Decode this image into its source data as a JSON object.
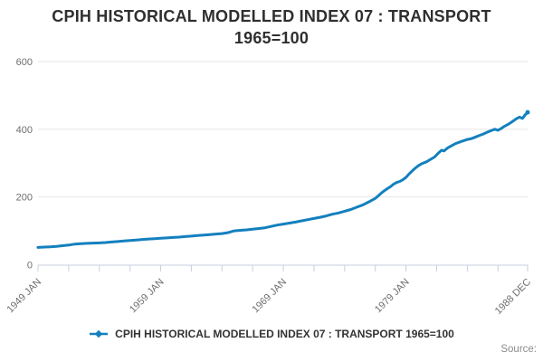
{
  "title": {
    "line1": "CPIH HISTORICAL MODELLED INDEX 07 : TRANSPORT",
    "line2": "1965=100"
  },
  "legend": {
    "label": "CPIH HISTORICAL MODELLED INDEX 07 : TRANSPORT 1965=100"
  },
  "source": {
    "label": "Source:"
  },
  "colors": {
    "series": "#1380be",
    "grid": "#e6e6e6",
    "axis": "#c7cede",
    "tick_text": "#6e6e6e",
    "title_text": "#2f2f2f",
    "legend_text": "#333333",
    "source_text": "#8c8c8c"
  },
  "chart_data": {
    "type": "line",
    "title": "CPIH HISTORICAL MODELLED INDEX 07 : TRANSPORT 1965=100",
    "xlabel": "",
    "ylabel": "",
    "xlim": [
      1949.0,
      1988.917
    ],
    "ylim": [
      0,
      600
    ],
    "grid": true,
    "legend_position": "bottom",
    "y_ticks": [
      0,
      200,
      400,
      600
    ],
    "x_minor_tick_step_years": 2.5,
    "x_ticks": [
      {
        "year": 1949.0,
        "label": "1949 JAN"
      },
      {
        "year": 1959.0,
        "label": "1959 JAN"
      },
      {
        "year": 1969.0,
        "label": "1969 JAN"
      },
      {
        "year": 1979.0,
        "label": "1979 JAN"
      },
      {
        "year": 1988.917,
        "label": "1988 DEC"
      }
    ],
    "series": [
      {
        "name": "CPIH HISTORICAL MODELLED INDEX 07 : TRANSPORT 1965=100",
        "color": "#1380be",
        "points": [
          [
            1949.0,
            51
          ],
          [
            1949.5,
            52
          ],
          [
            1950.0,
            53
          ],
          [
            1950.5,
            54
          ],
          [
            1951.0,
            56
          ],
          [
            1951.5,
            58
          ],
          [
            1952.0,
            61
          ],
          [
            1952.5,
            62
          ],
          [
            1953.0,
            63
          ],
          [
            1953.5,
            64
          ],
          [
            1954.0,
            64.5
          ],
          [
            1954.5,
            65.5
          ],
          [
            1955.0,
            67
          ],
          [
            1955.5,
            68.5
          ],
          [
            1956.0,
            70
          ],
          [
            1956.5,
            71.5
          ],
          [
            1957.0,
            73
          ],
          [
            1957.5,
            74.5
          ],
          [
            1958.0,
            76
          ],
          [
            1958.5,
            77
          ],
          [
            1959.0,
            78
          ],
          [
            1959.5,
            79
          ],
          [
            1960.0,
            80.5
          ],
          [
            1960.5,
            81.5
          ],
          [
            1961.0,
            83
          ],
          [
            1961.5,
            84.5
          ],
          [
            1962.0,
            86
          ],
          [
            1962.5,
            87.5
          ],
          [
            1963.0,
            89
          ],
          [
            1963.5,
            90.5
          ],
          [
            1964.0,
            92
          ],
          [
            1964.5,
            95
          ],
          [
            1965.0,
            100
          ],
          [
            1965.5,
            101.5
          ],
          [
            1966.0,
            103
          ],
          [
            1966.5,
            105
          ],
          [
            1967.0,
            107
          ],
          [
            1967.5,
            109
          ],
          [
            1968.0,
            113
          ],
          [
            1968.5,
            117
          ],
          [
            1969.0,
            120
          ],
          [
            1969.5,
            123
          ],
          [
            1970.0,
            126
          ],
          [
            1970.5,
            129.5
          ],
          [
            1971.0,
            133
          ],
          [
            1971.5,
            136.5
          ],
          [
            1972.0,
            140
          ],
          [
            1972.5,
            144
          ],
          [
            1973.0,
            149
          ],
          [
            1973.5,
            153
          ],
          [
            1974.0,
            158
          ],
          [
            1974.5,
            163
          ],
          [
            1975.0,
            170
          ],
          [
            1975.5,
            177
          ],
          [
            1976.0,
            186
          ],
          [
            1976.5,
            196
          ],
          [
            1976.75,
            204
          ],
          [
            1977.0,
            212
          ],
          [
            1977.25,
            219
          ],
          [
            1977.5,
            225
          ],
          [
            1977.75,
            231
          ],
          [
            1978.0,
            238
          ],
          [
            1978.25,
            243
          ],
          [
            1978.5,
            246
          ],
          [
            1978.75,
            251
          ],
          [
            1979.0,
            258
          ],
          [
            1979.25,
            268
          ],
          [
            1979.5,
            277
          ],
          [
            1979.75,
            285
          ],
          [
            1980.0,
            292
          ],
          [
            1980.33,
            299
          ],
          [
            1980.67,
            304
          ],
          [
            1981.0,
            311
          ],
          [
            1981.33,
            318
          ],
          [
            1981.67,
            331
          ],
          [
            1981.9,
            338
          ],
          [
            1982.1,
            336
          ],
          [
            1982.4,
            345
          ],
          [
            1982.7,
            351
          ],
          [
            1983.0,
            357
          ],
          [
            1983.3,
            361
          ],
          [
            1983.6,
            365
          ],
          [
            1984.0,
            370
          ],
          [
            1984.3,
            372
          ],
          [
            1984.6,
            376
          ],
          [
            1985.0,
            382
          ],
          [
            1985.3,
            386
          ],
          [
            1985.6,
            391
          ],
          [
            1986.0,
            397
          ],
          [
            1986.25,
            400
          ],
          [
            1986.5,
            397
          ],
          [
            1986.75,
            402
          ],
          [
            1987.0,
            408
          ],
          [
            1987.3,
            414
          ],
          [
            1987.6,
            421
          ],
          [
            1988.0,
            431
          ],
          [
            1988.25,
            436
          ],
          [
            1988.5,
            432
          ],
          [
            1988.7,
            442
          ],
          [
            1988.917,
            450
          ]
        ]
      }
    ]
  }
}
